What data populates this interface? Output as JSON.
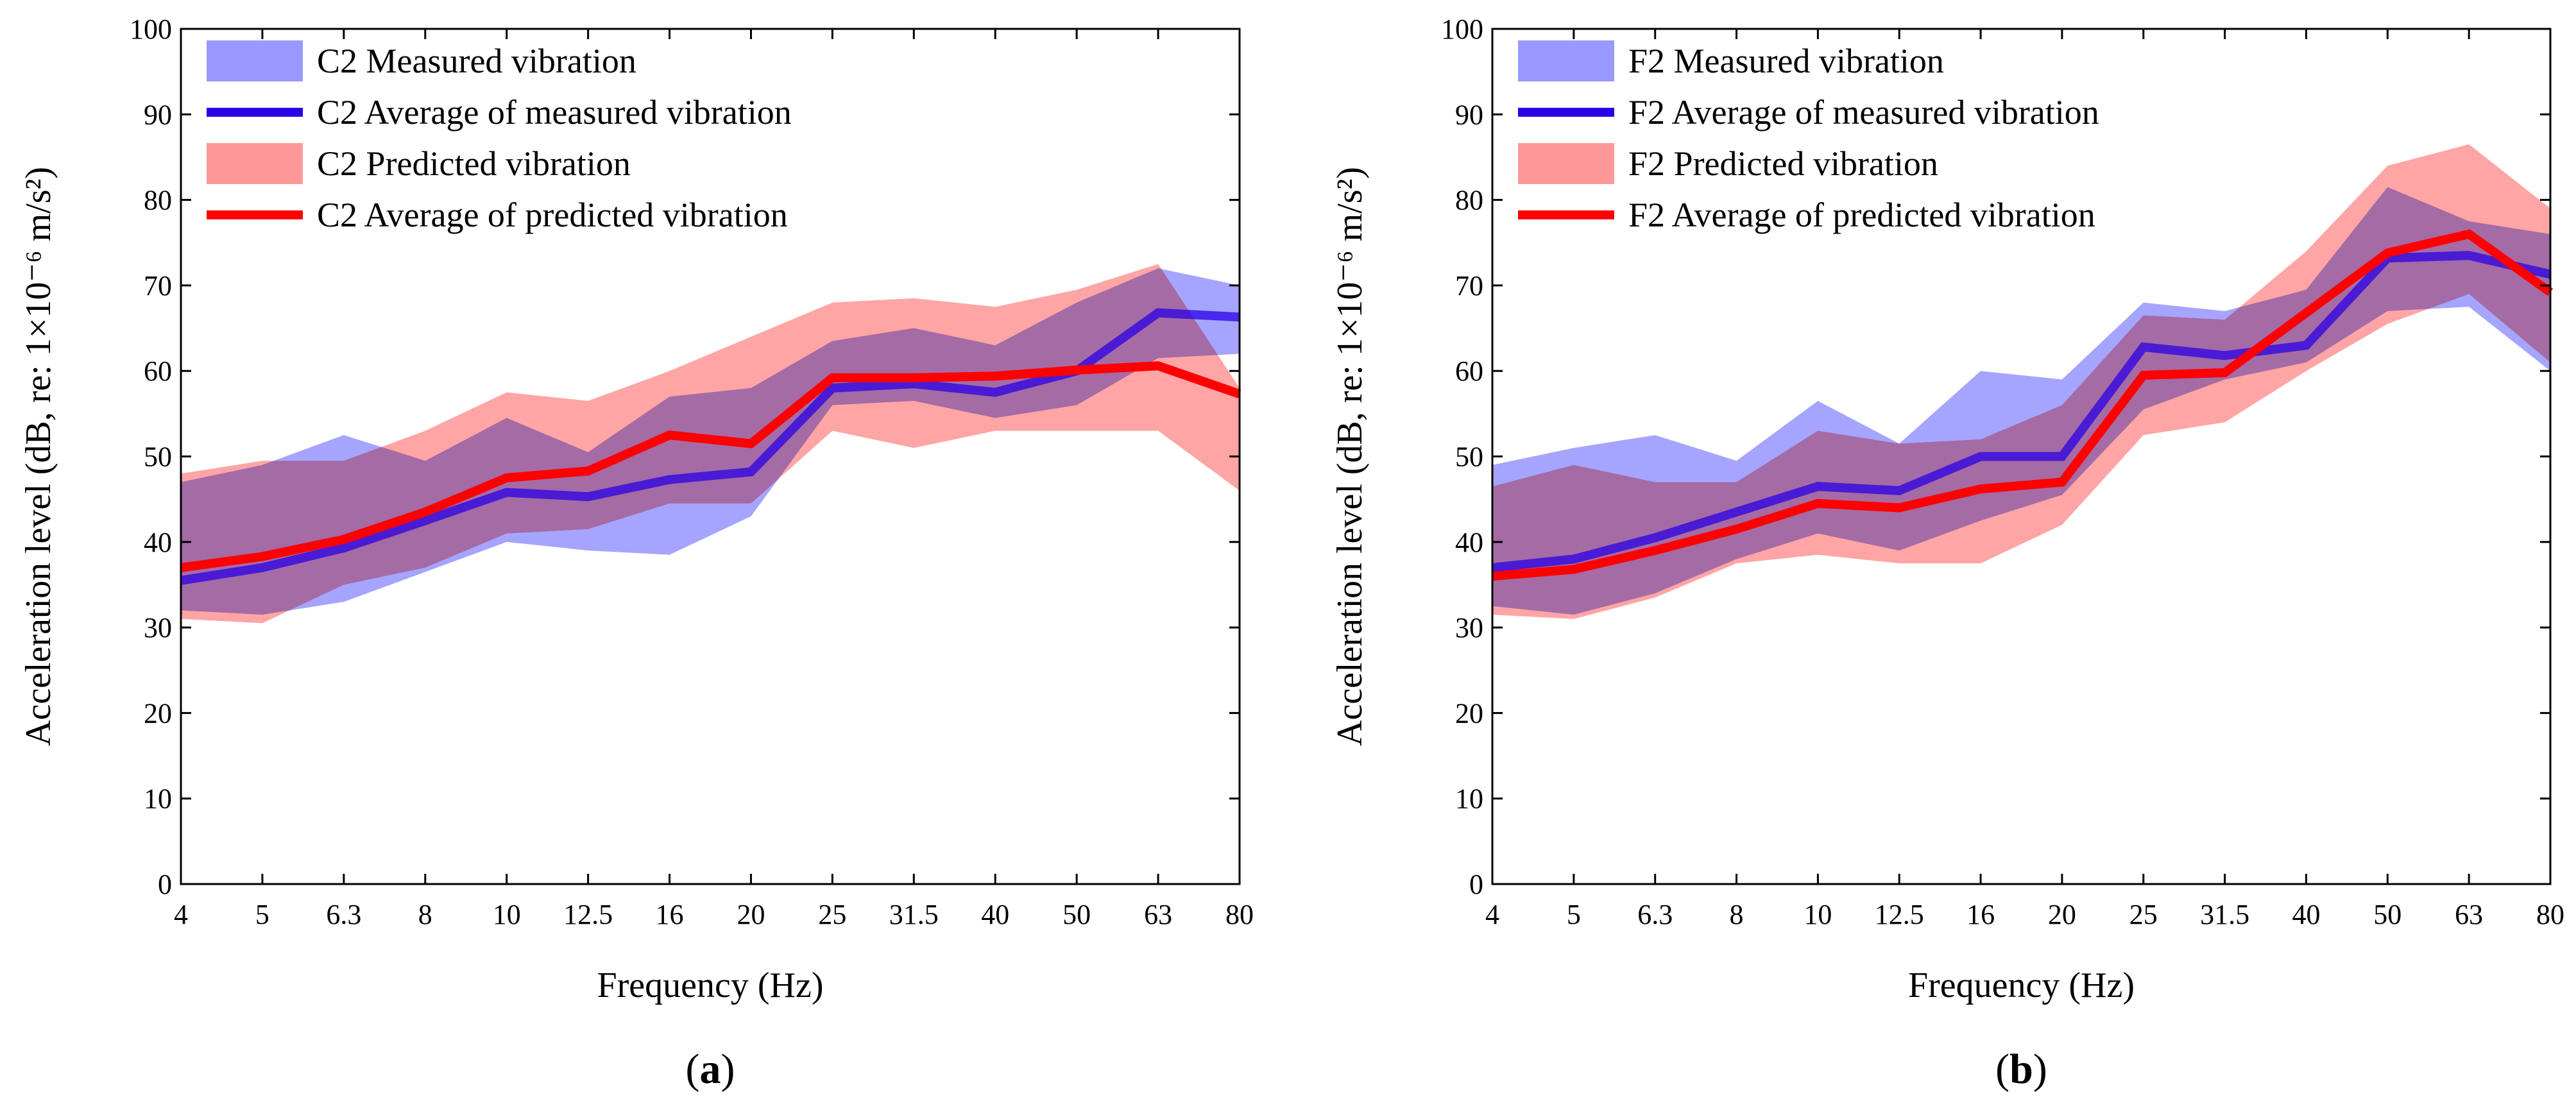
{
  "chart_data": [
    {
      "type": "area",
      "panel_label": "(a)",
      "xlabel": "Frequency (Hz)",
      "ylabel": "Acceleration level (dB, re: 1×10⁻⁶ m/s²)",
      "ylim": [
        0,
        100
      ],
      "yticks": [
        "0",
        "10",
        "20",
        "30",
        "40",
        "50",
        "60",
        "70",
        "80",
        "90",
        "100"
      ],
      "categories": [
        "4",
        "5",
        "6.3",
        "8",
        "10",
        "12.5",
        "16",
        "20",
        "25",
        "31.5",
        "40",
        "50",
        "63",
        "80"
      ],
      "legend_position": "top-left",
      "series": [
        {
          "name": "C2 Measured vibration",
          "kind": "band",
          "color": "#7f7fff",
          "upper": [
            47,
            49,
            52.5,
            49.5,
            54.5,
            50.5,
            57,
            58,
            63.5,
            65,
            63,
            68,
            72,
            70
          ],
          "lower": [
            32,
            31.5,
            33,
            36.5,
            40,
            39,
            38.5,
            43,
            56,
            56.5,
            54.5,
            56,
            61.5,
            62
          ]
        },
        {
          "name": "C2 Average of measured vibration",
          "kind": "line",
          "color": "#2b00e6",
          "values": [
            35.5,
            37,
            39.3,
            42.5,
            45.8,
            45.3,
            47.3,
            48.2,
            58,
            58.5,
            57.5,
            60,
            66.8,
            66.3
          ]
        },
        {
          "name": "C2 Predicted vibration",
          "kind": "band",
          "color": "#ff7f7f",
          "upper": [
            48,
            49.5,
            49.5,
            53,
            57.5,
            56.5,
            60,
            64,
            68,
            68.5,
            67.5,
            69.5,
            72.5,
            58
          ],
          "lower": [
            31,
            30.5,
            35,
            37,
            41,
            41.5,
            44.5,
            44.5,
            53,
            51,
            53,
            53,
            53,
            46
          ]
        },
        {
          "name": "C2 Average of predicted vibration",
          "kind": "line",
          "color": "#ff0000",
          "values": [
            37,
            38.3,
            40.3,
            43.5,
            47.5,
            48.3,
            52.5,
            51.5,
            59.2,
            59.2,
            59.4,
            60.1,
            60.6,
            57.3
          ]
        }
      ]
    },
    {
      "type": "area",
      "panel_label": "(b)",
      "xlabel": "Frequency (Hz)",
      "ylabel": "Acceleration level (dB, re: 1×10⁻⁶ m/s²)",
      "ylim": [
        0,
        100
      ],
      "yticks": [
        "0",
        "10",
        "20",
        "30",
        "40",
        "50",
        "60",
        "70",
        "80",
        "90",
        "100"
      ],
      "categories": [
        "4",
        "5",
        "6.3",
        "8",
        "10",
        "12.5",
        "16",
        "20",
        "25",
        "31.5",
        "40",
        "50",
        "63",
        "80"
      ],
      "legend_position": "top-left",
      "series": [
        {
          "name": "F2 Measured vibration",
          "kind": "band",
          "color": "#7f7fff",
          "upper": [
            49,
            51,
            52.5,
            49.5,
            56.5,
            51.5,
            60,
            59,
            68,
            67,
            69.5,
            81.5,
            77.5,
            76
          ],
          "lower": [
            32.5,
            31.5,
            34,
            38,
            41,
            39,
            42.5,
            45.5,
            55.5,
            59,
            61,
            67,
            67.5,
            60
          ]
        },
        {
          "name": "F2 Average of measured vibration",
          "kind": "line",
          "color": "#2b00e6",
          "values": [
            37,
            38,
            40.5,
            43.5,
            46.5,
            46,
            50,
            50,
            62.8,
            61.8,
            63,
            73.2,
            73.5,
            71.3
          ]
        },
        {
          "name": "F2 Predicted vibration",
          "kind": "band",
          "color": "#ff7f7f",
          "upper": [
            46.5,
            49,
            47,
            47,
            53,
            51.5,
            52,
            56,
            66.5,
            66,
            74,
            84,
            86.5,
            79
          ]
        },
        {
          "name": "F2 Average of predicted vibration",
          "kind": "line",
          "color": "#ff0000",
          "values": [
            36,
            36.8,
            39,
            41.5,
            44.5,
            44,
            46.2,
            47,
            59.5,
            59.8,
            66.8,
            73.8,
            76,
            69.2
          ]
        }
      ]
    }
  ]
}
